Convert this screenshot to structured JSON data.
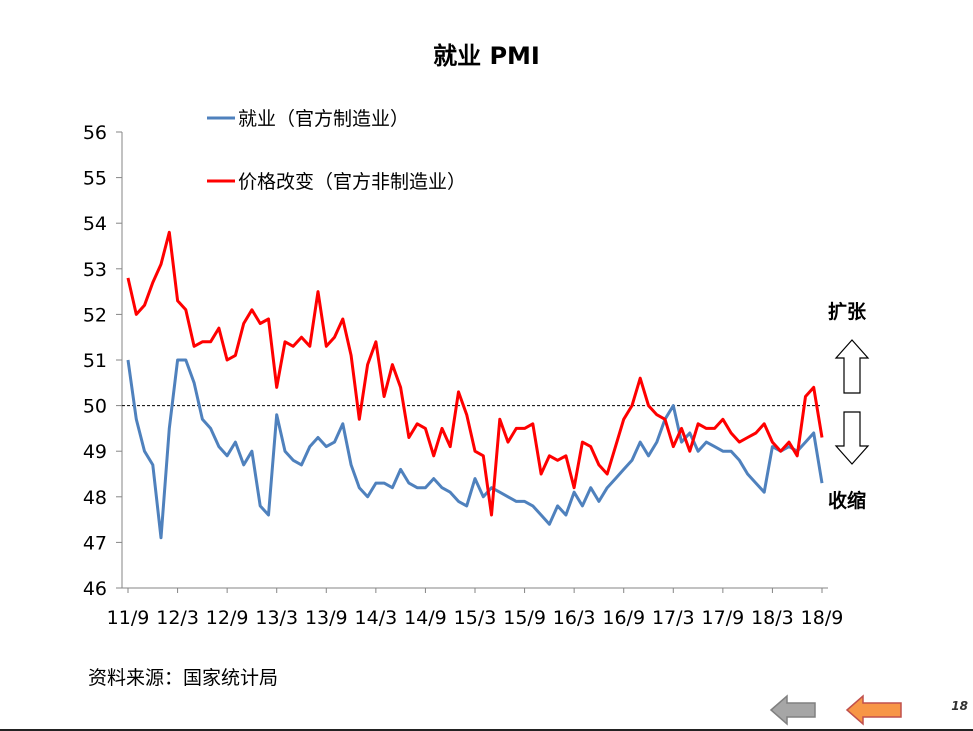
{
  "chart_data": {
    "type": "line",
    "title": "就业 PMI",
    "xlabel": "",
    "ylabel": "",
    "ylim": [
      46,
      56
    ],
    "yticks": [
      46,
      47,
      48,
      49,
      50,
      51,
      52,
      53,
      54,
      55,
      56
    ],
    "x_tick_labels": [
      "11/9",
      "12/3",
      "12/9",
      "13/3",
      "13/9",
      "14/3",
      "14/9",
      "15/3",
      "15/9",
      "16/3",
      "16/9",
      "17/3",
      "17/9",
      "18/3",
      "18/9"
    ],
    "x_start": "2011-09",
    "x_end": "2018-09",
    "reference_line": 50,
    "legend_position": "top-left",
    "grid": false,
    "series": [
      {
        "name": "就业（官方制造业）",
        "color": "#4f81bd",
        "values": [
          51.0,
          49.7,
          49.0,
          48.7,
          47.1,
          49.5,
          51.0,
          51.0,
          50.5,
          49.7,
          49.5,
          49.1,
          48.9,
          49.2,
          48.7,
          49.0,
          47.8,
          47.6,
          49.8,
          49.0,
          48.8,
          48.7,
          49.1,
          49.3,
          49.1,
          49.2,
          49.6,
          48.7,
          48.2,
          48.0,
          48.3,
          48.3,
          48.2,
          48.6,
          48.3,
          48.2,
          48.2,
          48.4,
          48.2,
          48.1,
          47.9,
          47.8,
          48.4,
          48.0,
          48.2,
          48.1,
          48.0,
          47.9,
          47.9,
          47.8,
          47.6,
          47.4,
          47.8,
          47.6,
          48.1,
          47.8,
          48.2,
          47.9,
          48.2,
          48.4,
          48.6,
          48.8,
          49.2,
          48.9,
          49.2,
          49.7,
          50.0,
          49.2,
          49.4,
          49.0,
          49.2,
          49.1,
          49.0,
          49.0,
          48.8,
          48.5,
          48.3,
          48.1,
          49.1,
          49.0,
          49.1,
          49.0,
          49.2,
          49.4,
          48.3
        ]
      },
      {
        "name": "价格改变（官方非制造业）",
        "color": "#ff0000",
        "values": [
          52.8,
          52.0,
          52.2,
          52.7,
          53.1,
          53.8,
          52.3,
          52.1,
          51.3,
          51.4,
          51.4,
          51.7,
          51.0,
          51.1,
          51.8,
          52.1,
          51.8,
          51.9,
          50.4,
          51.4,
          51.3,
          51.5,
          51.3,
          52.5,
          51.3,
          51.5,
          51.9,
          51.1,
          49.7,
          50.9,
          51.4,
          50.2,
          50.9,
          50.4,
          49.3,
          49.6,
          49.5,
          48.9,
          49.5,
          49.1,
          50.3,
          49.8,
          49.0,
          48.9,
          47.6,
          49.7,
          49.2,
          49.5,
          49.5,
          49.6,
          48.5,
          48.9,
          48.8,
          48.9,
          48.2,
          49.2,
          49.1,
          48.7,
          48.5,
          49.1,
          49.7,
          50.0,
          50.6,
          50.0,
          49.8,
          49.7,
          49.1,
          49.5,
          49.0,
          49.6,
          49.5,
          49.5,
          49.7,
          49.4,
          49.2,
          49.3,
          49.4,
          49.6,
          49.2,
          49.0,
          49.2,
          48.9,
          50.2,
          50.4,
          49.3
        ]
      }
    ]
  },
  "labels": {
    "expand": "扩张",
    "contract": "收缩"
  },
  "source": "资料来源：国家统计局",
  "page_number": "18",
  "nav": {
    "prev_color": "#a6a6a6",
    "next_color": "#f79646"
  }
}
